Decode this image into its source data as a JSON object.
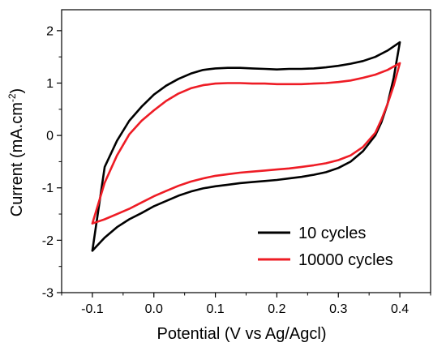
{
  "chart_data": {
    "type": "line",
    "title": "",
    "xlabel": "Potential (V vs Ag/Agcl)",
    "ylabel_main": "Current (mA.cm",
    "ylabel_sup": "-2",
    "ylabel_close": ")",
    "xlim": [
      -0.15,
      0.45
    ],
    "ylim": [
      -3,
      2.4
    ],
    "xticks": [
      -0.1,
      0.0,
      0.1,
      0.2,
      0.3,
      0.4
    ],
    "xtick_labels": [
      "-0.1",
      "0.0",
      "0.1",
      "0.2",
      "0.3",
      "0.4"
    ],
    "yticks": [
      -3,
      -2,
      -1,
      0,
      1,
      2
    ],
    "ytick_labels": [
      "-3",
      "-2",
      "-1",
      "0",
      "1",
      "2"
    ],
    "grid": false,
    "legend_position": "bottom-right",
    "series": [
      {
        "name": "10 cycles",
        "color": "#000000",
        "points": [
          [
            -0.1,
            -2.2
          ],
          [
            -0.08,
            -1.95
          ],
          [
            -0.06,
            -1.75
          ],
          [
            -0.04,
            -1.6
          ],
          [
            -0.02,
            -1.48
          ],
          [
            0.0,
            -1.35
          ],
          [
            0.02,
            -1.25
          ],
          [
            0.04,
            -1.15
          ],
          [
            0.06,
            -1.07
          ],
          [
            0.08,
            -1.01
          ],
          [
            0.1,
            -0.97
          ],
          [
            0.12,
            -0.94
          ],
          [
            0.14,
            -0.91
          ],
          [
            0.16,
            -0.89
          ],
          [
            0.18,
            -0.87
          ],
          [
            0.2,
            -0.85
          ],
          [
            0.22,
            -0.82
          ],
          [
            0.24,
            -0.79
          ],
          [
            0.26,
            -0.75
          ],
          [
            0.28,
            -0.7
          ],
          [
            0.3,
            -0.62
          ],
          [
            0.32,
            -0.5
          ],
          [
            0.34,
            -0.3
          ],
          [
            0.36,
            0.0
          ],
          [
            0.37,
            0.25
          ],
          [
            0.38,
            0.6
          ],
          [
            0.39,
            1.1
          ],
          [
            0.4,
            1.78
          ],
          [
            0.38,
            1.62
          ],
          [
            0.36,
            1.5
          ],
          [
            0.34,
            1.42
          ],
          [
            0.32,
            1.37
          ],
          [
            0.3,
            1.33
          ],
          [
            0.28,
            1.3
          ],
          [
            0.26,
            1.28
          ],
          [
            0.24,
            1.27
          ],
          [
            0.22,
            1.27
          ],
          [
            0.2,
            1.26
          ],
          [
            0.18,
            1.27
          ],
          [
            0.16,
            1.28
          ],
          [
            0.14,
            1.29
          ],
          [
            0.12,
            1.29
          ],
          [
            0.1,
            1.28
          ],
          [
            0.08,
            1.25
          ],
          [
            0.06,
            1.18
          ],
          [
            0.04,
            1.08
          ],
          [
            0.02,
            0.95
          ],
          [
            0.0,
            0.78
          ],
          [
            -0.02,
            0.55
          ],
          [
            -0.04,
            0.28
          ],
          [
            -0.06,
            -0.1
          ],
          [
            -0.08,
            -0.6
          ],
          [
            -0.1,
            -2.2
          ]
        ]
      },
      {
        "name": "10000 cycles",
        "color": "#ee1c25",
        "points": [
          [
            -0.1,
            -1.68
          ],
          [
            -0.08,
            -1.6
          ],
          [
            -0.06,
            -1.5
          ],
          [
            -0.04,
            -1.4
          ],
          [
            -0.02,
            -1.28
          ],
          [
            0.0,
            -1.16
          ],
          [
            0.02,
            -1.06
          ],
          [
            0.04,
            -0.96
          ],
          [
            0.06,
            -0.88
          ],
          [
            0.08,
            -0.82
          ],
          [
            0.1,
            -0.77
          ],
          [
            0.12,
            -0.74
          ],
          [
            0.14,
            -0.71
          ],
          [
            0.16,
            -0.69
          ],
          [
            0.18,
            -0.67
          ],
          [
            0.2,
            -0.65
          ],
          [
            0.22,
            -0.63
          ],
          [
            0.24,
            -0.6
          ],
          [
            0.26,
            -0.57
          ],
          [
            0.28,
            -0.53
          ],
          [
            0.3,
            -0.47
          ],
          [
            0.32,
            -0.38
          ],
          [
            0.34,
            -0.22
          ],
          [
            0.36,
            0.05
          ],
          [
            0.37,
            0.3
          ],
          [
            0.38,
            0.6
          ],
          [
            0.39,
            0.95
          ],
          [
            0.4,
            1.38
          ],
          [
            0.38,
            1.25
          ],
          [
            0.36,
            1.16
          ],
          [
            0.34,
            1.1
          ],
          [
            0.32,
            1.05
          ],
          [
            0.3,
            1.02
          ],
          [
            0.28,
            1.0
          ],
          [
            0.26,
            0.99
          ],
          [
            0.24,
            0.98
          ],
          [
            0.22,
            0.98
          ],
          [
            0.2,
            0.98
          ],
          [
            0.18,
            0.99
          ],
          [
            0.16,
            0.99
          ],
          [
            0.14,
            1.0
          ],
          [
            0.12,
            1.0
          ],
          [
            0.1,
            0.99
          ],
          [
            0.08,
            0.96
          ],
          [
            0.06,
            0.9
          ],
          [
            0.04,
            0.8
          ],
          [
            0.02,
            0.66
          ],
          [
            0.0,
            0.48
          ],
          [
            -0.02,
            0.28
          ],
          [
            -0.04,
            0.02
          ],
          [
            -0.06,
            -0.38
          ],
          [
            -0.08,
            -0.9
          ],
          [
            -0.1,
            -1.68
          ]
        ]
      }
    ]
  }
}
